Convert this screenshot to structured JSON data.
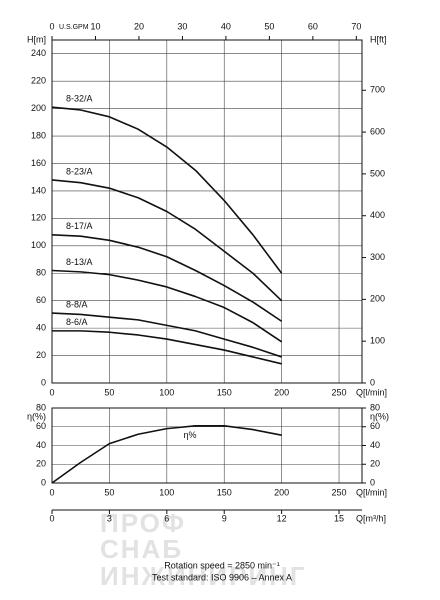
{
  "chart_data": [
    {
      "type": "line",
      "xlabel": "Q[l/min]",
      "ylabel": "H[m]",
      "y2label": "H[ft]",
      "x2label": "U.S.GPM",
      "x": [
        0,
        25,
        50,
        75,
        100,
        125,
        150,
        175,
        200
      ],
      "xlim": [
        0,
        270
      ],
      "xticks": [
        0,
        50,
        100,
        150,
        200,
        250
      ],
      "ylim": [
        0,
        250
      ],
      "yticks": [
        0,
        20,
        40,
        60,
        80,
        100,
        120,
        140,
        160,
        180,
        200,
        220,
        240
      ],
      "y2lim": [
        0,
        820.2
      ],
      "y2ticks": [
        0,
        100,
        200,
        300,
        400,
        500,
        600,
        700
      ],
      "x2lim": [
        0,
        71.3
      ],
      "x2ticks": [
        0,
        10,
        20,
        30,
        40,
        50,
        60,
        70
      ],
      "grid": true,
      "series": [
        {
          "name": "8-32/A",
          "color": "#111111",
          "values": [
            201,
            199,
            194,
            185,
            172,
            155,
            133,
            108,
            80
          ]
        },
        {
          "name": "8-23/A",
          "color": "#111111",
          "values": [
            148,
            146,
            142,
            135,
            125,
            112,
            96,
            80,
            60
          ]
        },
        {
          "name": "8-17/A",
          "color": "#111111",
          "values": [
            108,
            107,
            104,
            99,
            92,
            82,
            71,
            59,
            45
          ]
        },
        {
          "name": "8-13/A",
          "color": "#111111",
          "values": [
            82,
            81,
            79,
            75,
            70,
            63,
            55,
            44,
            30
          ]
        },
        {
          "name": "8-8/A",
          "color": "#111111",
          "values": [
            51,
            50,
            48,
            46,
            42,
            38,
            32,
            26,
            19
          ]
        },
        {
          "name": "8-6/A",
          "color": "#111111",
          "values": [
            38,
            38,
            37,
            35,
            32,
            28,
            24,
            19,
            14
          ]
        }
      ]
    },
    {
      "type": "line",
      "xlabel": "Q[l/min]",
      "ylabel": "η(%)",
      "y2label": "η(%)",
      "x2label": "Q[m³/h]",
      "x": [
        0,
        25,
        50,
        75,
        100,
        125,
        150,
        175,
        200
      ],
      "xlim": [
        0,
        270
      ],
      "xticks": [
        0,
        50,
        100,
        150,
        200,
        250
      ],
      "ylim": [
        0,
        80
      ],
      "yticks": [
        0,
        20,
        40,
        60,
        80
      ],
      "y2lim": [
        0,
        80
      ],
      "y2ticks": [
        0,
        20,
        40,
        60,
        80
      ],
      "x2lim": [
        0,
        16.2
      ],
      "x2ticks": [
        0,
        3,
        6,
        9,
        12,
        15
      ],
      "grid": true,
      "series": [
        {
          "name": "η%",
          "color": "#111111",
          "values": [
            0,
            22,
            42,
            52,
            58,
            61,
            61,
            57,
            51
          ]
        }
      ]
    }
  ],
  "watermark": [
    "ПРОФ",
    "СНАБ",
    "ИНЖИНИРИНГ"
  ],
  "footer": [
    "Rotation speed = 2850 min⁻¹",
    "Test standard: ISO 9906 – Annex A"
  ]
}
